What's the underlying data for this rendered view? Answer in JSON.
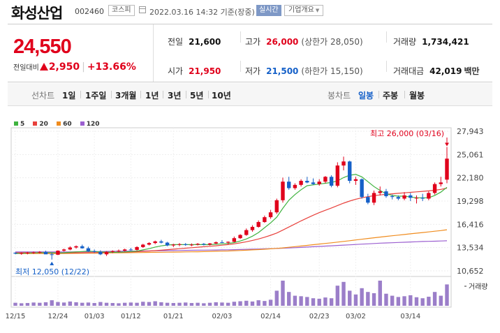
{
  "header": {
    "name": "화성산업",
    "code": "002460",
    "market": "코스피",
    "datetime": "2022.03.16 14:32 기준(장중)",
    "realtime": "실시간",
    "overview": "기업개요"
  },
  "price": {
    "current": "24,550",
    "change_label": "전일대비",
    "change": "2,950",
    "change_pct": "+13.66%"
  },
  "stats": {
    "prev_close": {
      "label": "전일",
      "value": "21,600"
    },
    "high": {
      "label": "고가",
      "value": "26,000",
      "sub": "(상한가 28,050)"
    },
    "volume": {
      "label": "거래량",
      "value": "1,734,421"
    },
    "open": {
      "label": "시가",
      "value": "21,950"
    },
    "low": {
      "label": "저가",
      "value": "21,500",
      "sub": "(하한가 15,150)"
    },
    "amount": {
      "label": "거래대금",
      "value": "42,019",
      "unit": "백만"
    }
  },
  "period_bar": {
    "line_label": "선차트",
    "line_items": [
      "1일",
      "1주일",
      "3개월",
      "1년",
      "3년",
      "5년",
      "10년"
    ],
    "candle_label": "봉차트",
    "candle_items": [
      "일봉",
      "주봉",
      "월봉"
    ],
    "active_candle": "일봉"
  },
  "colors": {
    "up": "#e0001b",
    "down": "#1560c8",
    "ma5": "#3fb33f",
    "ma20": "#e8413c",
    "ma60": "#f08c1e",
    "ma120": "#9b5fd0",
    "volume": "#9b7ec9"
  },
  "chart_data": {
    "type": "candlestick",
    "legend": [
      "5",
      "20",
      "60",
      "120"
    ],
    "y_ticks": [
      "27,943",
      "25,061",
      "22,180",
      "19,298",
      "16,416",
      "13,534",
      "10,652"
    ],
    "ylim": [
      10652,
      27943
    ],
    "x_ticks": [
      "12/15",
      "12/24",
      "01/03",
      "01/12",
      "01/21",
      "02/03",
      "02/14",
      "02/23",
      "03/02",
      "03/14"
    ],
    "high_label": "최고 26,000 (03/16)",
    "low_label": "최저 12,050 (12/22)",
    "volume_label": "거래량",
    "candles": [
      [
        12900,
        12950,
        12700,
        12800
      ],
      [
        12800,
        12950,
        12650,
        12850
      ],
      [
        12850,
        13000,
        12700,
        12900
      ],
      [
        12900,
        13050,
        12750,
        12950
      ],
      [
        12950,
        13100,
        12800,
        13000
      ],
      [
        13000,
        13150,
        12850,
        12700
      ],
      [
        12700,
        12900,
        12050,
        12650
      ],
      [
        12650,
        13200,
        12600,
        13150
      ],
      [
        13150,
        13400,
        13050,
        13300
      ],
      [
        13300,
        13700,
        13200,
        13550
      ],
      [
        13550,
        13800,
        13400,
        13700
      ],
      [
        13700,
        13900,
        13400,
        13450
      ],
      [
        13450,
        13650,
        13000,
        13100
      ],
      [
        13100,
        13300,
        12900,
        13000
      ],
      [
        13000,
        13200,
        12600,
        12700
      ],
      [
        12700,
        13100,
        12500,
        13000
      ],
      [
        13000,
        13200,
        12850,
        13100
      ],
      [
        13100,
        13300,
        12950,
        13150
      ],
      [
        13150,
        13400,
        13050,
        13300
      ],
      [
        13300,
        13500,
        13150,
        13250
      ],
      [
        13250,
        13700,
        13150,
        13600
      ],
      [
        13600,
        14000,
        13500,
        13900
      ],
      [
        13900,
        14200,
        13800,
        14100
      ],
      [
        14100,
        14400,
        13950,
        14300
      ],
      [
        14300,
        14500,
        14050,
        14150
      ],
      [
        14150,
        14250,
        13700,
        13800
      ],
      [
        13800,
        14000,
        13600,
        13900
      ],
      [
        13900,
        14100,
        13700,
        13950
      ],
      [
        13950,
        14100,
        13750,
        13850
      ],
      [
        13850,
        14050,
        13700,
        13900
      ],
      [
        13900,
        14100,
        13800,
        14000
      ],
      [
        14000,
        14100,
        13800,
        13900
      ],
      [
        13900,
        14100,
        13800,
        14050
      ],
      [
        14050,
        14300,
        13950,
        14200
      ],
      [
        14200,
        14450,
        14100,
        14150
      ],
      [
        14150,
        14300,
        13950,
        14250
      ],
      [
        14250,
        14900,
        14200,
        14700
      ],
      [
        14700,
        15200,
        14600,
        15100
      ],
      [
        15100,
        15900,
        15000,
        15700
      ],
      [
        15700,
        16300,
        15500,
        16100
      ],
      [
        16100,
        16900,
        16000,
        16700
      ],
      [
        16700,
        17500,
        16600,
        17300
      ],
      [
        17300,
        18200,
        17100,
        17900
      ],
      [
        17900,
        19600,
        17700,
        19400
      ],
      [
        19400,
        22200,
        19100,
        21700
      ],
      [
        21700,
        22300,
        20700,
        20900
      ],
      [
        20900,
        21500,
        20700,
        21300
      ],
      [
        21300,
        22000,
        21100,
        21800
      ],
      [
        21800,
        22300,
        21500,
        21600
      ],
      [
        21600,
        22100,
        21300,
        21400
      ],
      [
        21400,
        22000,
        21200,
        21700
      ],
      [
        21700,
        22400,
        21500,
        22300
      ],
      [
        22300,
        22500,
        21000,
        21200
      ],
      [
        21200,
        24100,
        21000,
        23700
      ],
      [
        23700,
        24800,
        23100,
        24200
      ],
      [
        24200,
        24300,
        21500,
        21800
      ],
      [
        21800,
        22300,
        21300,
        22000
      ],
      [
        22000,
        22100,
        19600,
        19800
      ],
      [
        19800,
        20200,
        18900,
        19100
      ],
      [
        19100,
        20600,
        18800,
        20300
      ],
      [
        20300,
        21100,
        20000,
        20500
      ],
      [
        20500,
        20800,
        19700,
        19900
      ],
      [
        19900,
        20100,
        19500,
        19800
      ],
      [
        19800,
        20000,
        19400,
        19600
      ],
      [
        19600,
        20400,
        19400,
        20000
      ],
      [
        20000,
        20300,
        19300,
        19700
      ],
      [
        19700,
        20000,
        19000,
        19700
      ],
      [
        19700,
        20200,
        19300,
        19600
      ],
      [
        19600,
        20500,
        19400,
        20300
      ],
      [
        20300,
        21600,
        20100,
        21400
      ],
      [
        21400,
        22300,
        21100,
        21600
      ],
      [
        21950,
        26000,
        21500,
        24550
      ]
    ],
    "volumes": [
      12,
      10,
      11,
      13,
      12,
      14,
      22,
      15,
      13,
      17,
      14,
      12,
      13,
      11,
      15,
      12,
      11,
      10,
      12,
      13,
      12,
      16,
      15,
      18,
      14,
      12,
      11,
      12,
      13,
      11,
      12,
      10,
      12,
      14,
      13,
      12,
      16,
      18,
      20,
      17,
      22,
      19,
      24,
      60,
      100,
      55,
      40,
      38,
      35,
      30,
      28,
      33,
      30,
      80,
      95,
      60,
      45,
      70,
      55,
      50,
      100,
      48,
      40,
      35,
      38,
      42,
      34,
      30,
      36,
      55,
      40,
      85
    ],
    "ma5": [
      12800,
      12830,
      12860,
      12890,
      12920,
      12930,
      12900,
      12880,
      12900,
      12950,
      13000,
      13050,
      13100,
      13050,
      13000,
      12980,
      12950,
      12950,
      13000,
      13050,
      13100,
      13250,
      13400,
      13600,
      13750,
      13850,
      13900,
      13900,
      13900,
      13900,
      13900,
      13900,
      13900,
      13950,
      14000,
      14050,
      14150,
      14350,
      14600,
      14950,
      15400,
      16000,
      16600,
      17300,
      18400,
      19400,
      20100,
      20700,
      21200,
      21300,
      21400,
      21500,
      21600,
      21800,
      22200,
      22500,
      22600,
      22300,
      21700,
      21100,
      20600,
      20200,
      20000,
      19900,
      19900,
      19800,
      19700,
      19700,
      19700,
      20000,
      20400,
      21000
    ],
    "ma20": [
      12900,
      12900,
      12900,
      12900,
      12900,
      12900,
      12880,
      12870,
      12870,
      12880,
      12890,
      12900,
      12910,
      12920,
      12930,
      12940,
      12950,
      12960,
      12980,
      13000,
      13030,
      13070,
      13110,
      13160,
      13220,
      13280,
      13340,
      13400,
      13460,
      13520,
      13580,
      13640,
      13700,
      13760,
      13830,
      13900,
      14000,
      14120,
      14260,
      14420,
      14600,
      14820,
      15060,
      15340,
      15700,
      16080,
      16460,
      16840,
      17200,
      17540,
      17860,
      18160,
      18440,
      18740,
      19040,
      19300,
      19520,
      19700,
      19840,
      19960,
      20060,
      20140,
      20200,
      20260,
      20320,
      20380,
      20440,
      20500,
      20560,
      20640,
      20740,
      20900
    ],
    "ma60": [
      12800,
      12800,
      12800,
      12800,
      12800,
      12800,
      12800,
      12800,
      12800,
      12810,
      12820,
      12830,
      12840,
      12850,
      12860,
      12870,
      12880,
      12890,
      12900,
      12910,
      12920,
      12930,
      12940,
      12950,
      12960,
      12970,
      12980,
      12990,
      13000,
      13010,
      13020,
      13040,
      13060,
      13080,
      13100,
      13120,
      13150,
      13180,
      13210,
      13250,
      13290,
      13330,
      13380,
      13440,
      13500,
      13570,
      13650,
      13730,
      13810,
      13890,
      13970,
      14050,
      14130,
      14210,
      14300,
      14390,
      14480,
      14570,
      14660,
      14750,
      14840,
      14920,
      15000,
      15080,
      15160,
      15240,
      15320,
      15400,
      15480,
      15560,
      15640,
      15740
    ],
    "ma120": [
      13000,
      13000,
      13000,
      13000,
      13000,
      13000,
      13000,
      13000,
      13000,
      13000,
      13010,
      13020,
      13030,
      13040,
      13050,
      13060,
      13070,
      13080,
      13090,
      13100,
      13110,
      13120,
      13130,
      13140,
      13150,
      13160,
      13170,
      13180,
      13190,
      13200,
      13210,
      13220,
      13230,
      13240,
      13250,
      13260,
      13280,
      13300,
      13320,
      13340,
      13360,
      13380,
      13400,
      13430,
      13460,
      13490,
      13520,
      13560,
      13600,
      13640,
      13680,
      13720,
      13760,
      13800,
      13840,
      13880,
      13920,
      13960,
      14000,
      14040,
      14080,
      14110,
      14140,
      14170,
      14200,
      14230,
      14260,
      14290,
      14310,
      14330,
      14350,
      14380
    ]
  }
}
